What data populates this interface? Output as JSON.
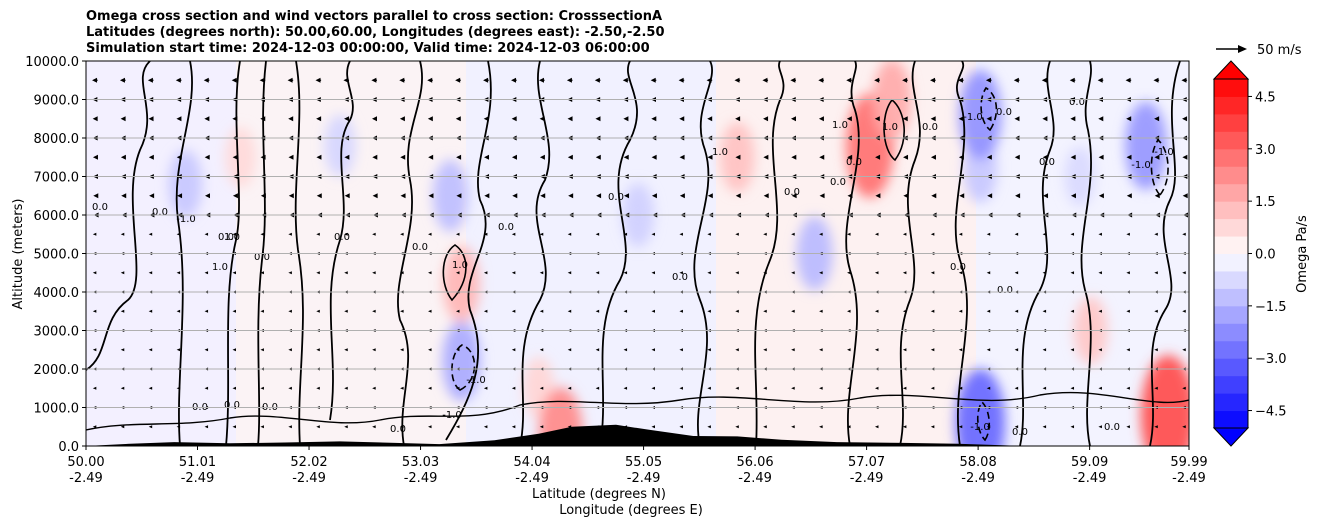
{
  "title_lines": [
    "Omega cross section and wind vectors parallel to cross section: CrosssectionA",
    "Latitudes (degrees north): 50.00,60.00, Longitudes (degrees east): -2.50,-2.50",
    "Simulation start time: 2024-12-03 00:00:00, Valid time: 2024-12-03 06:00:00"
  ],
  "quiver_key_label": "50 m/s",
  "chart_data": {
    "type": "heatmap",
    "ylabel": "Altitude (meters)",
    "xlabel_lat": "Latitude (degrees N)",
    "xlabel_lon": "Longitude (degrees E)",
    "ylim": [
      0,
      10000
    ],
    "y_ticks": [
      "0.0",
      "1000.0",
      "2000.0",
      "3000.0",
      "4000.0",
      "5000.0",
      "6000.0",
      "7000.0",
      "8000.0",
      "9000.0",
      "10000.0"
    ],
    "x_ticks": [
      {
        "lat": "50.00",
        "lon": "-2.49"
      },
      {
        "lat": "51.01",
        "lon": "-2.49"
      },
      {
        "lat": "52.02",
        "lon": "-2.49"
      },
      {
        "lat": "53.03",
        "lon": "-2.49"
      },
      {
        "lat": "54.04",
        "lon": "-2.49"
      },
      {
        "lat": "55.05",
        "lon": "-2.49"
      },
      {
        "lat": "56.06",
        "lon": "-2.49"
      },
      {
        "lat": "57.07",
        "lon": "-2.49"
      },
      {
        "lat": "58.08",
        "lon": "-2.49"
      },
      {
        "lat": "59.09",
        "lon": "-2.49"
      },
      {
        "lat": "59.99",
        "lon": "-2.49"
      }
    ],
    "grid": "horizontal",
    "colorbar": {
      "label": "Omega Pa/s",
      "range": [
        -5,
        5
      ],
      "ticks": [
        "-4.5",
        "-3.0",
        "-1.5",
        "0.0",
        "1.5",
        "3.0",
        "4.5"
      ],
      "low_color": "#0000ff",
      "high_color": "#ff0000",
      "mid_color": "#ffffff"
    },
    "contour_levels": [
      -1.0,
      0.0,
      1.0
    ],
    "contour_label_texts": [
      "0.0",
      "1.0",
      "-1.0"
    ],
    "omega_cells": [
      {
        "lat": 50.9,
        "z": 6800,
        "value": -1.2
      },
      {
        "lat": 51.4,
        "z": 7500,
        "value": 0.8
      },
      {
        "lat": 52.3,
        "z": 7800,
        "value": -0.9
      },
      {
        "lat": 53.3,
        "z": 6500,
        "value": -1.4
      },
      {
        "lat": 53.4,
        "z": 4200,
        "value": 1.6
      },
      {
        "lat": 53.4,
        "z": 2200,
        "value": -1.8
      },
      {
        "lat": 54.1,
        "z": 1500,
        "value": 0.9
      },
      {
        "lat": 54.3,
        "z": 300,
        "value": 2.5
      },
      {
        "lat": 55.0,
        "z": 6000,
        "value": -1.0
      },
      {
        "lat": 55.9,
        "z": 7500,
        "value": 1.3
      },
      {
        "lat": 56.6,
        "z": 5000,
        "value": -1.5
      },
      {
        "lat": 57.1,
        "z": 7800,
        "value": 3.0
      },
      {
        "lat": 57.3,
        "z": 9000,
        "value": 1.8
      },
      {
        "lat": 58.1,
        "z": 7200,
        "value": -1.2
      },
      {
        "lat": 58.1,
        "z": 600,
        "value": -3.2
      },
      {
        "lat": 58.1,
        "z": 8600,
        "value": -2.3
      },
      {
        "lat": 59.0,
        "z": 7000,
        "value": -0.8
      },
      {
        "lat": 59.1,
        "z": 3000,
        "value": 1.2
      },
      {
        "lat": 59.6,
        "z": 7800,
        "value": -2.2
      },
      {
        "lat": 59.8,
        "z": 800,
        "value": 3.8
      }
    ],
    "wind_u_profile_ms": [
      {
        "z": 9500,
        "u": -9
      },
      {
        "z": 9000,
        "u": -8
      },
      {
        "z": 8500,
        "u": -7
      },
      {
        "z": 8000,
        "u": -7
      },
      {
        "z": 7500,
        "u": -6
      },
      {
        "z": 7000,
        "u": -6
      },
      {
        "z": 6500,
        "u": -5
      },
      {
        "z": 6000,
        "u": -4
      },
      {
        "z": 5500,
        "u": -3
      },
      {
        "z": 5000,
        "u": -2
      },
      {
        "z": 4500,
        "u": -2
      },
      {
        "z": 4000,
        "u": -1
      },
      {
        "z": 3500,
        "u": -1
      },
      {
        "z": 3000,
        "u": -1
      },
      {
        "z": 2500,
        "u": -1
      },
      {
        "z": 2000,
        "u": -1
      },
      {
        "z": 1500,
        "u": -1
      },
      {
        "z": 1000,
        "u": -1
      },
      {
        "z": 500,
        "u": -1
      }
    ],
    "terrain": [
      {
        "lat": 50.4,
        "h": 60
      },
      {
        "lat": 50.8,
        "h": 100
      },
      {
        "lat": 51.3,
        "h": 70
      },
      {
        "lat": 51.8,
        "h": 90
      },
      {
        "lat": 52.3,
        "h": 120
      },
      {
        "lat": 52.8,
        "h": 80
      },
      {
        "lat": 53.2,
        "h": 50
      },
      {
        "lat": 53.7,
        "h": 150
      },
      {
        "lat": 54.1,
        "h": 320
      },
      {
        "lat": 54.4,
        "h": 500
      },
      {
        "lat": 54.8,
        "h": 550
      },
      {
        "lat": 55.1,
        "h": 420
      },
      {
        "lat": 55.5,
        "h": 260
      },
      {
        "lat": 55.9,
        "h": 250
      },
      {
        "lat": 56.3,
        "h": 160
      },
      {
        "lat": 56.8,
        "h": 100
      },
      {
        "lat": 57.4,
        "h": 80
      },
      {
        "lat": 57.9,
        "h": 60
      }
    ]
  }
}
